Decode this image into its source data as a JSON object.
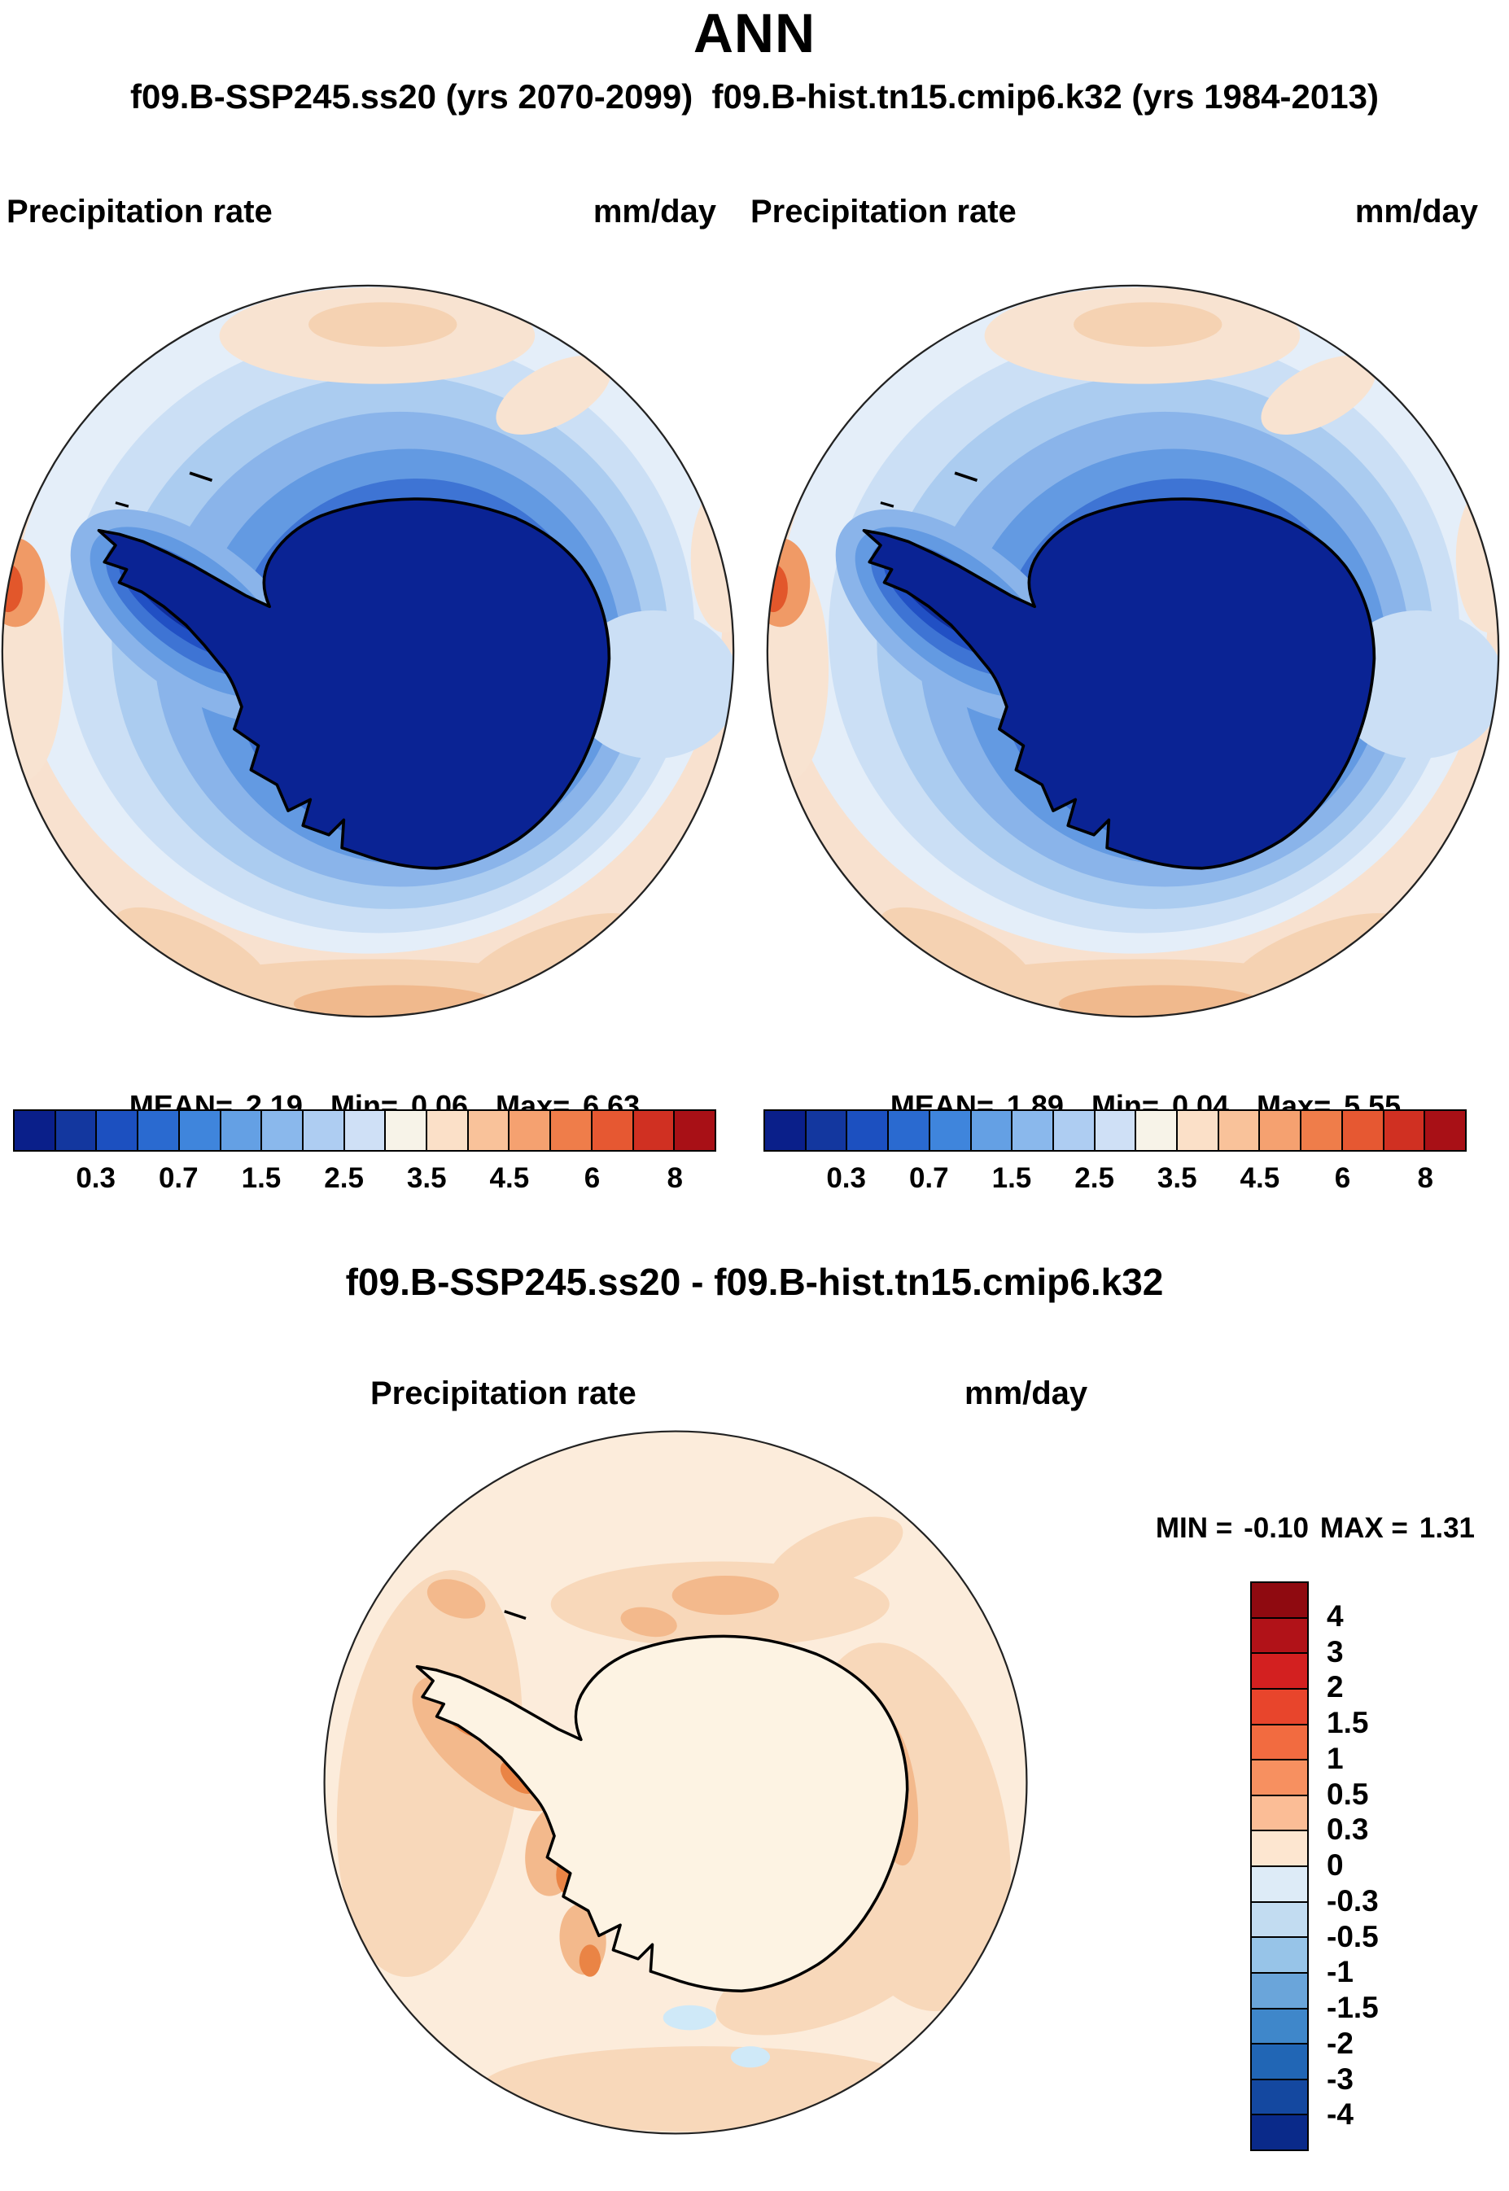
{
  "title": "ANN",
  "subtitle": "f09.B-SSP245.ss20 (yrs 2070-2099)  f09.B-hist.tn15.cmip6.k32 (yrs 1984-2013)",
  "panels": {
    "left": {
      "field": "Precipitation rate",
      "units": "mm/day",
      "mean_label": "MEAN=",
      "mean": "2.19",
      "min_label": "Min=",
      "min": "0.06",
      "max_label": "Max=",
      "max": "6.63"
    },
    "right": {
      "field": "Precipitation rate",
      "units": "mm/day",
      "mean_label": "MEAN=",
      "mean": "1.89",
      "min_label": "Min=",
      "min": "0.04",
      "max_label": "Max=",
      "max": "5.55"
    }
  },
  "colorbar": {
    "ticks": [
      "0.3",
      "0.7",
      "1.5",
      "2.5",
      "3.5",
      "4.5",
      "6",
      "8"
    ],
    "colors": [
      "#0a1f8a",
      "#13379f",
      "#1c50c0",
      "#2a6ad0",
      "#3f85dc",
      "#64a0e4",
      "#8ab8ec",
      "#aecdf2",
      "#cfe0f6",
      "#f7f3e8",
      "#fbe0c8",
      "#f9c29a",
      "#f5a170",
      "#ef7d4a",
      "#e65832",
      "#d03022",
      "#a81016"
    ]
  },
  "diff": {
    "title": "f09.B-SSP245.ss20 - f09.B-hist.tn15.cmip6.k32",
    "field": "Precipitation rate",
    "units": "mm/day",
    "min_label": "MIN =",
    "min": "-0.10",
    "max_label": "MAX =",
    "max": "1.31",
    "colorbar": {
      "ticks": [
        "4",
        "3",
        "2",
        "1.5",
        "1",
        "0.5",
        "0.3",
        "0",
        "-0.3",
        "-0.5",
        "-1",
        "-1.5",
        "-2",
        "-3",
        "-4"
      ],
      "colors": [
        "#8f0a10",
        "#b11218",
        "#d32020",
        "#e8452c",
        "#f26b40",
        "#f79060",
        "#fbbd96",
        "#fde6d0",
        "#ddebf7",
        "#c2dcf1",
        "#97c4e8",
        "#6aa5da",
        "#3f87ca",
        "#2166b5",
        "#1448a0",
        "#0a2a8a"
      ]
    }
  },
  "chart_data": [
    {
      "type": "heatmap",
      "panel": "top-left",
      "title": "f09.B-SSP245.ss20 (yrs 2070-2099)",
      "variable": "Precipitation rate",
      "units": "mm/day",
      "projection": "south-polar stereographic (Antarctica)",
      "stats": {
        "mean": 2.19,
        "min": 0.06,
        "max": 6.63
      },
      "tick_labels": [
        0.3,
        0.7,
        1.5,
        2.5,
        3.5,
        4.5,
        6,
        8
      ],
      "n_color_bands": 17,
      "palette": "dark blue (low precip over Antarctic interior) through light blue ocean ring to pale orange/red at low-latitude rim",
      "legend_position": "horizontal bar below panel"
    },
    {
      "type": "heatmap",
      "panel": "top-right",
      "title": "f09.B-hist.tn15.cmip6.k32 (yrs 1984-2013)",
      "variable": "Precipitation rate",
      "units": "mm/day",
      "projection": "south-polar stereographic (Antarctica)",
      "stats": {
        "mean": 1.89,
        "min": 0.04,
        "max": 5.55
      },
      "tick_labels": [
        0.3,
        0.7,
        1.5,
        2.5,
        3.5,
        4.5,
        6,
        8
      ],
      "n_color_bands": 17,
      "palette": "same blue-white-red precipitation palette as top-left",
      "legend_position": "horizontal bar below panel"
    },
    {
      "type": "heatmap",
      "panel": "bottom-difference",
      "title": "f09.B-SSP245.ss20 - f09.B-hist.tn15.cmip6.k32",
      "variable": "Precipitation rate difference",
      "units": "mm/day",
      "projection": "south-polar stereographic (Antarctica)",
      "stats": {
        "min": -0.1,
        "max": 1.31
      },
      "contour_levels": [
        -4,
        -3,
        -2,
        -1.5,
        -1,
        -0.5,
        -0.3,
        0,
        0.3,
        0.5,
        1,
        1.5,
        2,
        3,
        4
      ],
      "n_color_bands": 16,
      "palette": "red positive anomalies (field mostly 0 to +1.31, pale orange with stronger orange along coast/peninsula), blue negative",
      "legend_position": "vertical bar at right"
    }
  ]
}
